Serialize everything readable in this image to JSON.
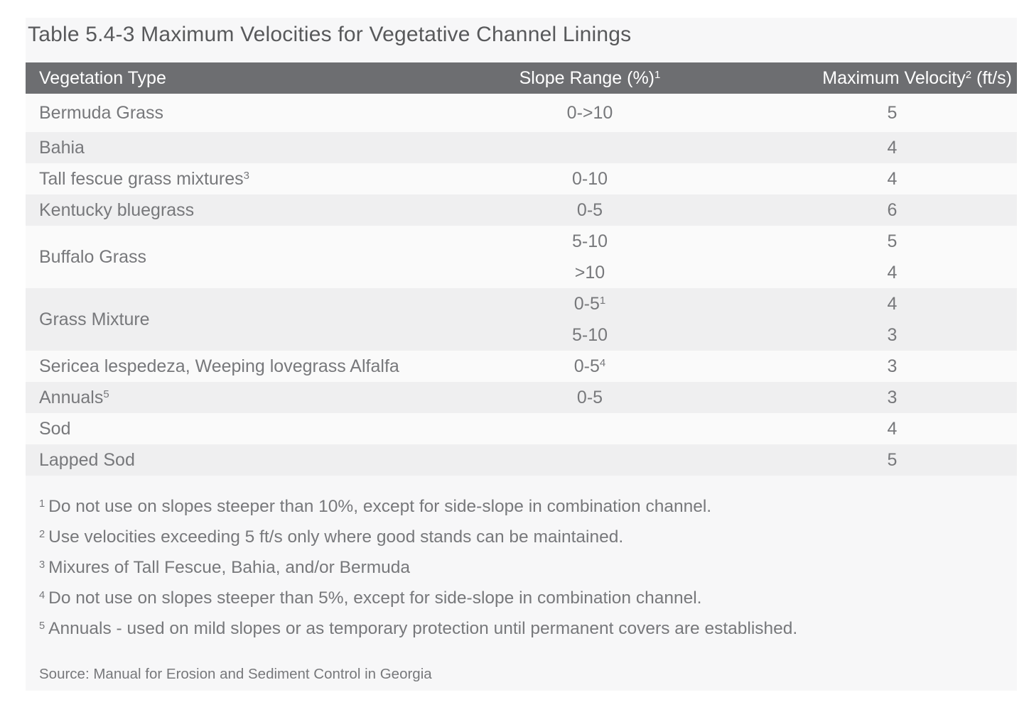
{
  "title": "Table 5.4-3 Maximum Velocities for Vegetative Channel Linings",
  "columns": [
    {
      "pre": "Vegetation Type",
      "sup": "",
      "post": ""
    },
    {
      "pre": "Slope Range (%)",
      "sup": "1",
      "post": ""
    },
    {
      "pre": "Maximum Velocity",
      "sup": "2",
      "post": " (ft/s)"
    }
  ],
  "rows": [
    {
      "vegetation": "Bermuda Grass",
      "vegetation_sup": "",
      "shade": "light",
      "entries": [
        {
          "slope": "0->10",
          "slope_sup": "",
          "velocity": "5"
        }
      ]
    },
    {
      "vegetation": "Bahia",
      "vegetation_sup": "",
      "shade": "dark",
      "entries": [
        {
          "slope": "",
          "slope_sup": "",
          "velocity": "4"
        }
      ]
    },
    {
      "vegetation": "Tall fescue grass mixtures",
      "vegetation_sup": "3",
      "shade": "light",
      "entries": [
        {
          "slope": "0-10",
          "slope_sup": "",
          "velocity": "4"
        }
      ]
    },
    {
      "vegetation": "Kentucky bluegrass",
      "vegetation_sup": "",
      "shade": "dark",
      "entries": [
        {
          "slope": "0-5",
          "slope_sup": "",
          "velocity": "6"
        }
      ]
    },
    {
      "vegetation": "Buffalo Grass",
      "vegetation_sup": "",
      "shade": "light",
      "entries": [
        {
          "slope": "5-10",
          "slope_sup": "",
          "velocity": "5"
        },
        {
          "slope": ">10",
          "slope_sup": "",
          "velocity": "4"
        }
      ]
    },
    {
      "vegetation": "Grass Mixture",
      "vegetation_sup": "",
      "shade": "dark",
      "entries": [
        {
          "slope": "0-5",
          "slope_sup": "1",
          "velocity": "4"
        },
        {
          "slope": "5-10",
          "slope_sup": "",
          "velocity": "3"
        }
      ]
    },
    {
      "vegetation": "Sericea lespedeza, Weeping lovegrass Alfalfa",
      "vegetation_sup": "",
      "shade": "light",
      "entries": [
        {
          "slope": "0-5",
          "slope_sup": "4",
          "velocity": "3"
        }
      ]
    },
    {
      "vegetation": "Annuals",
      "vegetation_sup": "5",
      "shade": "dark",
      "entries": [
        {
          "slope": "0-5",
          "slope_sup": "",
          "velocity": "3"
        }
      ]
    },
    {
      "vegetation": "Sod",
      "vegetation_sup": "",
      "shade": "light",
      "entries": [
        {
          "slope": "",
          "slope_sup": "",
          "velocity": "4"
        }
      ]
    },
    {
      "vegetation": "Lapped Sod",
      "vegetation_sup": "",
      "shade": "dark",
      "entries": [
        {
          "slope": "",
          "slope_sup": "",
          "velocity": "5"
        }
      ]
    }
  ],
  "footnotes": [
    {
      "marker": "1",
      "text": "Do not use on slopes steeper than 10%, except for side-slope in combination channel."
    },
    {
      "marker": "2",
      "text": "Use velocities exceeding 5 ft/s only where good stands can be maintained."
    },
    {
      "marker": "3",
      "text": "Mixures of Tall Fescue, Bahia, and/or Bermuda"
    },
    {
      "marker": "4",
      "text": "Do not use on slopes steeper than 5%, except for side-slope in combination channel."
    },
    {
      "marker": "5",
      "text": "Annuals - used on mild slopes or as temporary protection until permanent covers are established."
    }
  ],
  "source": "Source: Manual for Erosion and Sediment Control in Georgia",
  "colors": {
    "header_bg": "#6d6e71",
    "header_text": "#ffffff",
    "row_light": "#fafafa",
    "row_dark": "#efeff0",
    "panel_bg": "#f7f7f8",
    "body_text": "#77787b",
    "title_text": "#58595b"
  }
}
